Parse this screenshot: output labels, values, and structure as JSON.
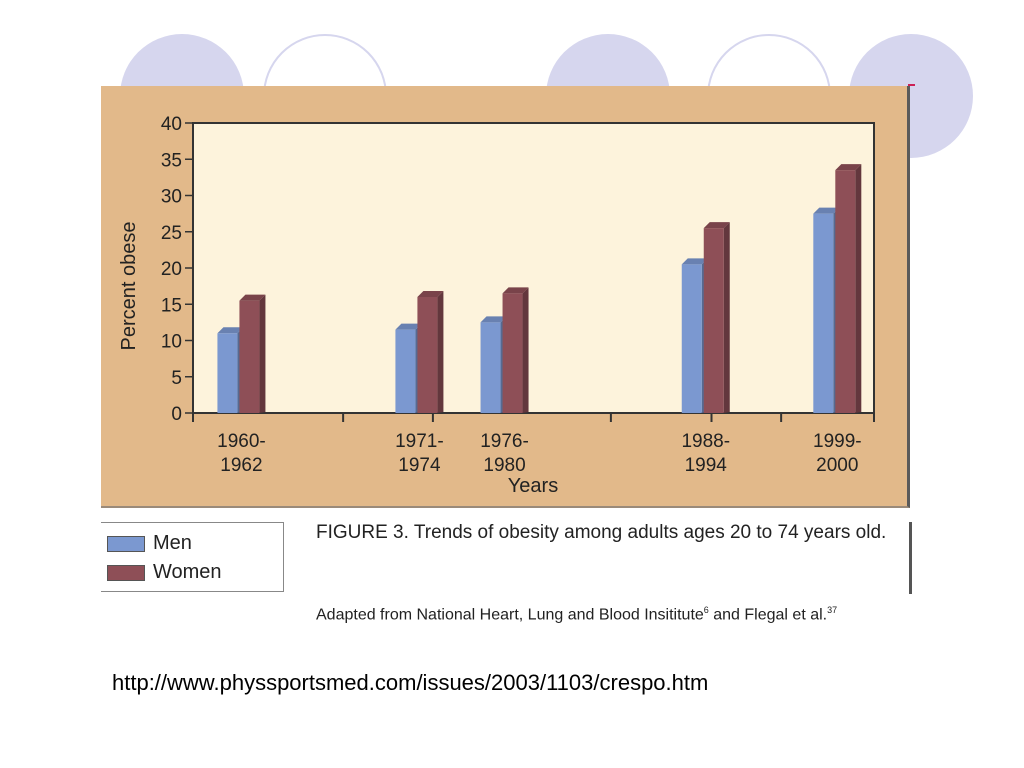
{
  "chart_data": {
    "type": "bar",
    "categories": [
      "1960-1962",
      "1971-1974",
      "1976-1980",
      "1988-1994",
      "1999-2000"
    ],
    "category_labels": [
      [
        "1960-",
        "1962"
      ],
      [
        "1971-",
        "1974"
      ],
      [
        "1976-",
        "1980"
      ],
      [
        "1988-",
        "1994"
      ],
      [
        "1999-",
        "2000"
      ]
    ],
    "series": [
      {
        "name": "Men",
        "values": [
          11,
          11.5,
          12.5,
          20.5,
          27.5
        ],
        "color": "#7b98d0"
      },
      {
        "name": "Women",
        "values": [
          15.5,
          16,
          16.5,
          25.5,
          33.5
        ],
        "color": "#8e4f57"
      }
    ],
    "xlabel": "Years",
    "ylabel": "Percent obese",
    "ylim": [
      0,
      40
    ],
    "yticks": [
      0,
      5,
      10,
      15,
      20,
      25,
      30,
      35,
      40
    ],
    "grid": false,
    "plot_background": "#fdf3dc",
    "panel_background": "#e2b98a"
  },
  "legend": {
    "items": [
      {
        "label": "Men",
        "color": "#7b98d0"
      },
      {
        "label": "Women",
        "color": "#8e4f57"
      }
    ]
  },
  "caption": "FIGURE 3. Trends of obesity among adults ages 20 to 74 years old.",
  "source_note": {
    "text": "Adapted from National Heart, Lung and Blood Insititute",
    "mark_1": "6",
    "middle": " and Flegal et al.",
    "mark_2": "37"
  },
  "url": "http://www.physsportsmed.com/issues/2003/1103/crespo.htm"
}
